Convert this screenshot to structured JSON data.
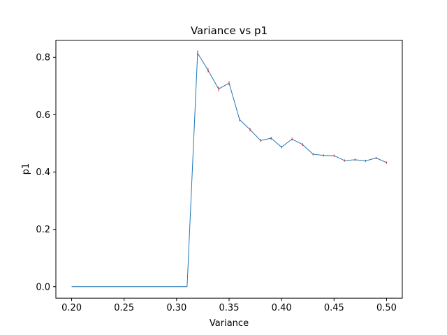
{
  "chart_data": {
    "type": "line",
    "title": "Variance vs p1",
    "xlabel": "Variance",
    "ylabel": "p1",
    "xlim": [
      0.185,
      0.515
    ],
    "ylim": [
      -0.04,
      0.86
    ],
    "xticks": [
      "0.20",
      "0.25",
      "0.30",
      "0.35",
      "0.40",
      "0.45",
      "0.50"
    ],
    "yticks": [
      "0.0",
      "0.2",
      "0.4",
      "0.6",
      "0.8"
    ],
    "grid": false,
    "line_color": "#1f77b4",
    "errorbar_color": "#d62728",
    "series": [
      {
        "x": [
          0.2,
          0.21,
          0.22,
          0.23,
          0.24,
          0.25,
          0.26,
          0.27,
          0.28,
          0.29,
          0.3,
          0.31,
          0.32,
          0.33,
          0.34,
          0.35,
          0.36,
          0.37,
          0.38,
          0.39,
          0.4,
          0.41,
          0.42,
          0.43,
          0.44,
          0.45,
          0.46,
          0.47,
          0.48,
          0.49,
          0.5
        ],
        "y": [
          0.0,
          0.0,
          0.0,
          0.0,
          0.0,
          0.0,
          0.0,
          0.0,
          0.0,
          0.0,
          0.0,
          0.0,
          0.815,
          0.755,
          0.69,
          0.71,
          0.583,
          0.548,
          0.51,
          0.518,
          0.487,
          0.515,
          0.496,
          0.462,
          0.458,
          0.457,
          0.44,
          0.443,
          0.439,
          0.449,
          0.433
        ],
        "err": [
          0,
          0,
          0,
          0,
          0,
          0,
          0,
          0,
          0,
          0,
          0,
          0,
          0.009,
          0.007,
          0.008,
          0.007,
          0.006,
          0.006,
          0.005,
          0.005,
          0.005,
          0.005,
          0.005,
          0.004,
          0.004,
          0.004,
          0.004,
          0.004,
          0.004,
          0.004,
          0.004
        ]
      }
    ]
  }
}
